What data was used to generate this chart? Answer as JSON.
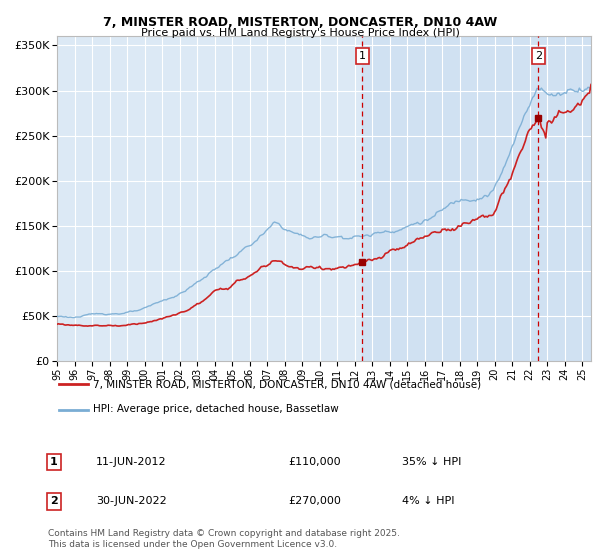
{
  "title": "7, MINSTER ROAD, MISTERTON, DONCASTER, DN10 4AW",
  "subtitle": "Price paid vs. HM Land Registry's House Price Index (HPI)",
  "legend_property": "7, MINSTER ROAD, MISTERTON, DONCASTER, DN10 4AW (detached house)",
  "legend_hpi": "HPI: Average price, detached house, Bassetlaw",
  "annotation1_date": "11-JUN-2012",
  "annotation1_price": "£110,000",
  "annotation1_hpi": "35% ↓ HPI",
  "annotation2_date": "30-JUN-2022",
  "annotation2_price": "£270,000",
  "annotation2_hpi": "4% ↓ HPI",
  "footer": "Contains HM Land Registry data © Crown copyright and database right 2025.\nThis data is licensed under the Open Government Licence v3.0.",
  "ylim": [
    0,
    360000
  ],
  "yticks": [
    0,
    50000,
    100000,
    150000,
    200000,
    250000,
    300000,
    350000
  ],
  "ytick_labels": [
    "£0",
    "£50K",
    "£100K",
    "£150K",
    "£200K",
    "£250K",
    "£300K",
    "£350K"
  ],
  "plot_bg_color": "#dce9f5",
  "hpi_color": "#7aadd4",
  "property_color": "#cc2222",
  "marker_color": "#990000",
  "vline_color": "#cc0000",
  "grid_color": "#ffffff",
  "purchase1_year": 2012.44,
  "purchase2_year": 2022.5,
  "purchase1_price": 110000,
  "purchase2_price": 270000,
  "xlim_start": 1995,
  "xlim_end": 2025.5
}
